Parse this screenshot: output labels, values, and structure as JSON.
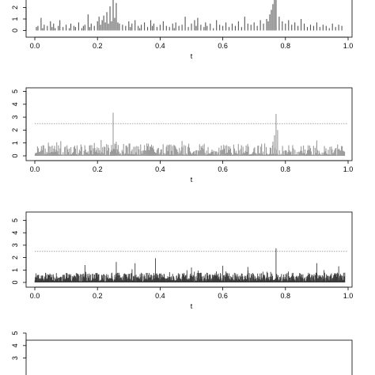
{
  "figure": {
    "background": "#ffffff"
  },
  "chart_data": [
    {
      "type": "bar",
      "panel": 1,
      "xlabel": "t",
      "ylabel": "",
      "xlim": [
        0,
        1
      ],
      "ylim": [
        0,
        5
      ],
      "x_ticks": [
        0.0,
        0.2,
        0.4,
        0.6,
        0.8,
        1.0
      ],
      "x_tick_labels": [
        "0.0",
        "0.2",
        "0.4",
        "0.6",
        "0.8",
        "1.0"
      ],
      "y_ticks": [
        0,
        1,
        2
      ],
      "y_tick_labels": [
        "0",
        "1",
        "2"
      ],
      "threshold": null,
      "bar_color": "#555555",
      "x": [
        0.005,
        0.01,
        0.02,
        0.025,
        0.03,
        0.04,
        0.05,
        0.055,
        0.06,
        0.065,
        0.075,
        0.08,
        0.09,
        0.1,
        0.11,
        0.115,
        0.125,
        0.13,
        0.14,
        0.15,
        0.155,
        0.16,
        0.17,
        0.175,
        0.18,
        0.19,
        0.2,
        0.205,
        0.21,
        0.215,
        0.22,
        0.225,
        0.23,
        0.235,
        0.24,
        0.245,
        0.25,
        0.255,
        0.26,
        0.265,
        0.27,
        0.28,
        0.29,
        0.3,
        0.305,
        0.31,
        0.32,
        0.33,
        0.335,
        0.34,
        0.35,
        0.36,
        0.37,
        0.375,
        0.38,
        0.39,
        0.4,
        0.41,
        0.42,
        0.43,
        0.44,
        0.445,
        0.45,
        0.46,
        0.47,
        0.48,
        0.49,
        0.5,
        0.51,
        0.515,
        0.52,
        0.53,
        0.54,
        0.545,
        0.55,
        0.56,
        0.57,
        0.58,
        0.59,
        0.6,
        0.61,
        0.62,
        0.63,
        0.64,
        0.65,
        0.66,
        0.67,
        0.68,
        0.69,
        0.7,
        0.71,
        0.72,
        0.73,
        0.74,
        0.745,
        0.75,
        0.755,
        0.76,
        0.765,
        0.77,
        0.78,
        0.79,
        0.8,
        0.81,
        0.82,
        0.83,
        0.84,
        0.85,
        0.86,
        0.87,
        0.88,
        0.89,
        0.9,
        0.91,
        0.92,
        0.93,
        0.94,
        0.95,
        0.96,
        0.97,
        0.98
      ],
      "values": [
        0.3,
        0.4,
        1.1,
        0.2,
        0.5,
        0.4,
        0.8,
        0.3,
        0.6,
        0.2,
        0.4,
        0.9,
        0.3,
        0.5,
        0.2,
        0.6,
        0.4,
        0.3,
        0.7,
        0.2,
        0.4,
        0.5,
        1.4,
        0.3,
        0.6,
        0.4,
        0.8,
        1.2,
        0.5,
        0.9,
        1.3,
        0.7,
        1.6,
        0.6,
        2.1,
        0.8,
        3.5,
        1.1,
        2.4,
        0.7,
        0.6,
        0.5,
        0.4,
        0.8,
        0.3,
        0.6,
        0.9,
        0.4,
        0.2,
        0.5,
        0.7,
        0.3,
        0.9,
        0.4,
        0.6,
        0.3,
        0.5,
        0.8,
        0.4,
        0.3,
        0.6,
        0.2,
        0.7,
        0.4,
        0.5,
        1.2,
        0.3,
        0.6,
        0.9,
        0.4,
        1.1,
        0.5,
        0.3,
        0.7,
        0.4,
        0.6,
        0.2,
        0.9,
        0.5,
        0.4,
        0.7,
        0.3,
        0.6,
        0.4,
        0.8,
        0.3,
        1.2,
        0.6,
        0.5,
        0.7,
        0.4,
        0.9,
        0.6,
        1.0,
        0.8,
        1.4,
        1.8,
        2.3,
        3.0,
        2.9,
        1.2,
        0.8,
        0.6,
        0.9,
        0.5,
        0.7,
        0.4,
        1.0,
        0.6,
        0.3,
        0.5,
        0.4,
        0.7,
        0.3,
        0.5,
        0.4,
        0.2,
        0.6,
        0.3,
        0.5,
        0.4
      ]
    },
    {
      "type": "bar",
      "panel": 2,
      "xlabel": "t",
      "ylabel": "",
      "xlim": [
        0,
        1
      ],
      "ylim": [
        0,
        5
      ],
      "x_ticks": [
        0.0,
        0.2,
        0.4,
        0.6,
        0.8,
        1.0
      ],
      "x_tick_labels": [
        "0.0",
        "0.2",
        "0.4",
        "0.6",
        "0.8",
        "1.0"
      ],
      "y_ticks": [
        0,
        1,
        2,
        3,
        4,
        5
      ],
      "y_tick_labels": [
        "0",
        "1",
        "2",
        "3",
        "4",
        "5"
      ],
      "threshold": 2.5,
      "bar_color": "#9a9a9a",
      "n_bars": 400,
      "base_level": 0.55,
      "spikes": [
        {
          "x": 0.25,
          "y": 3.35
        },
        {
          "x": 0.26,
          "y": 1.1
        },
        {
          "x": 0.255,
          "y": 0.95
        },
        {
          "x": 0.245,
          "y": 0.85
        },
        {
          "x": 0.77,
          "y": 3.25
        },
        {
          "x": 0.775,
          "y": 2.0
        },
        {
          "x": 0.765,
          "y": 1.6
        },
        {
          "x": 0.76,
          "y": 1.1
        },
        {
          "x": 0.9,
          "y": 1.2
        },
        {
          "x": 0.07,
          "y": 1.05
        },
        {
          "x": 0.19,
          "y": 1.0
        },
        {
          "x": 0.47,
          "y": 1.15
        }
      ]
    },
    {
      "type": "bar",
      "panel": 3,
      "xlabel": "t",
      "ylabel": "",
      "xlim": [
        0,
        1
      ],
      "ylim": [
        0,
        5
      ],
      "x_ticks": [
        0.0,
        0.2,
        0.4,
        0.6,
        0.8,
        1.0
      ],
      "x_tick_labels": [
        "0.0",
        "0.2",
        "0.4",
        "0.6",
        "0.8",
        "1.0"
      ],
      "y_ticks": [
        0,
        1,
        2,
        3,
        4,
        5
      ],
      "y_tick_labels": [
        "0",
        "1",
        "2",
        "3",
        "4",
        "5"
      ],
      "threshold": 2.5,
      "bar_color": "#3a3a3a",
      "n_bars": 1000,
      "base_level": 0.45,
      "spikes": [
        {
          "x": 0.77,
          "y": 2.75
        },
        {
          "x": 0.385,
          "y": 1.95
        },
        {
          "x": 0.26,
          "y": 1.65
        },
        {
          "x": 0.32,
          "y": 1.55
        },
        {
          "x": 0.9,
          "y": 1.55
        },
        {
          "x": 0.16,
          "y": 1.4
        },
        {
          "x": 0.6,
          "y": 1.35
        },
        {
          "x": 0.97,
          "y": 1.3
        },
        {
          "x": 0.68,
          "y": 1.25
        },
        {
          "x": 0.5,
          "y": 1.2
        }
      ]
    },
    {
      "type": "bar",
      "panel": 4,
      "xlabel": "",
      "ylabel": "",
      "xlim": [
        0,
        1
      ],
      "ylim": [
        0,
        5
      ],
      "x_ticks": [],
      "x_tick_labels": [],
      "y_ticks": [
        3,
        4,
        5
      ],
      "y_tick_labels": [
        "3",
        "4",
        "5"
      ],
      "threshold": null,
      "bar_color": "#3a3a3a",
      "n_bars": 0,
      "spikes": []
    }
  ]
}
